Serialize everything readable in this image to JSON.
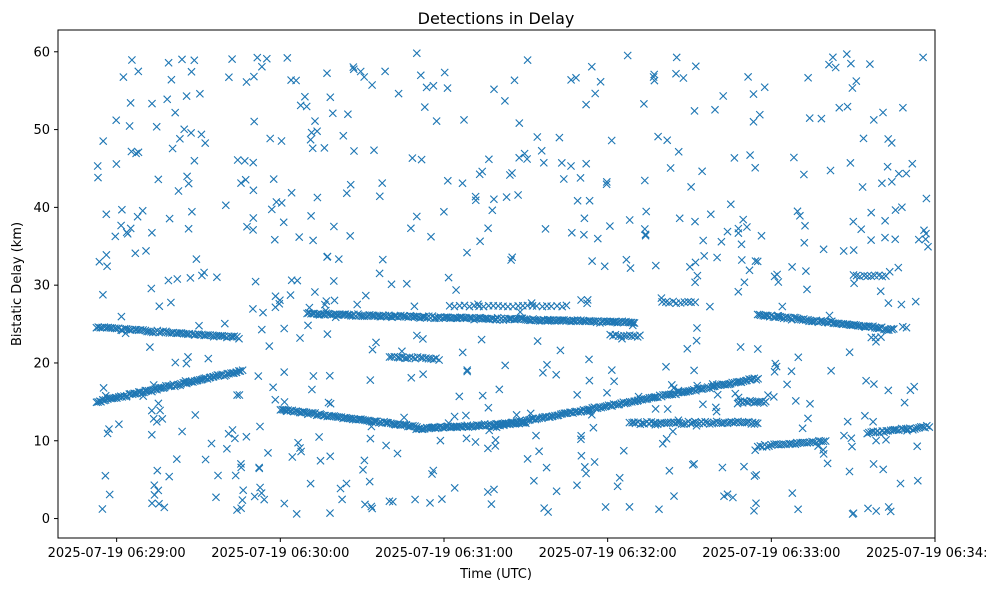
{
  "chart_data": {
    "type": "scatter",
    "title": "Detections in Delay",
    "xlabel": "Time (UTC)",
    "ylabel": "Bistatic Delay (km)",
    "marker": "x",
    "color": "#1f77b4",
    "xlim_seconds_after_06_28_40": [
      -1.5,
      320
    ],
    "ylim": [
      -2.5,
      62.8
    ],
    "x_ticks": [
      {
        "seconds": 20,
        "label": "2025-07-19 06:29:00"
      },
      {
        "seconds": 80,
        "label": "2025-07-19 06:30:00"
      },
      {
        "seconds": 140,
        "label": "2025-07-19 06:31:00"
      },
      {
        "seconds": 200,
        "label": "2025-07-19 06:32:00"
      },
      {
        "seconds": 260,
        "label": "2025-07-19 06:33:00"
      },
      {
        "seconds": 320,
        "label": "2025-07-19 06:34:00"
      }
    ],
    "y_ticks": [
      0,
      10,
      20,
      30,
      40,
      50,
      60
    ],
    "x_data_span_seconds": [
      12.5,
      317.5
    ],
    "tracks": [
      {
        "name": "rising track A",
        "x_start": 12.5,
        "x_end": 66,
        "y_start": 15.0,
        "y_end": 19.0,
        "count": 90
      },
      {
        "name": "rising track B",
        "x_start": 158,
        "x_end": 255,
        "y_start": 11.8,
        "y_end": 18.0,
        "count": 150
      },
      {
        "name": "falling track C",
        "x_start": 12.5,
        "x_end": 64,
        "y_start": 24.6,
        "y_end": 23.3,
        "count": 70
      },
      {
        "name": "falling track D",
        "x_start": 90,
        "x_end": 210,
        "y_start": 26.3,
        "y_end": 25.2,
        "count": 190
      },
      {
        "name": "falling track E",
        "x_start": 255,
        "x_end": 305,
        "y_start": 26.2,
        "y_end": 24.3,
        "count": 80
      },
      {
        "name": "curved track F",
        "x_start": 80,
        "x_end": 130,
        "y_start": 14.0,
        "y_end": 11.8,
        "count": 80
      },
      {
        "name": "flat track G",
        "x_start": 130,
        "x_end": 170,
        "y_start": 11.5,
        "y_end": 12.3,
        "count": 70
      },
      {
        "name": "flat track H",
        "x_start": 208,
        "x_end": 255,
        "y_start": 12.3,
        "y_end": 12.3,
        "count": 60
      },
      {
        "name": "rising track I",
        "x_start": 255,
        "x_end": 280,
        "y_start": 9.3,
        "y_end": 10.0,
        "count": 30
      },
      {
        "name": "flat track J",
        "x_start": 295,
        "x_end": 318,
        "y_start": 11.0,
        "y_end": 11.8,
        "count": 30
      },
      {
        "name": "cluster K",
        "x_start": 248,
        "x_end": 258,
        "y_start": 15.0,
        "y_end": 15.0,
        "count": 15
      },
      {
        "name": "cluster L",
        "x_start": 120,
        "x_end": 138,
        "y_start": 20.8,
        "y_end": 20.5,
        "count": 20
      },
      {
        "name": "cluster M",
        "x_start": 142,
        "x_end": 185,
        "y_start": 27.3,
        "y_end": 27.3,
        "count": 25
      },
      {
        "name": "cluster N",
        "x_start": 201,
        "x_end": 212,
        "y_start": 23.5,
        "y_end": 23.5,
        "count": 12
      },
      {
        "name": "cluster O",
        "x_start": 220,
        "x_end": 232,
        "y_start": 27.8,
        "y_end": 27.8,
        "count": 10
      },
      {
        "name": "cluster P",
        "x_start": 290,
        "x_end": 302,
        "y_start": 31.2,
        "y_end": 31.2,
        "count": 10
      }
    ],
    "clutter": {
      "count": 650,
      "x_range": [
        12.5,
        317.5
      ],
      "y_range": [
        0.5,
        60.0
      ]
    }
  }
}
